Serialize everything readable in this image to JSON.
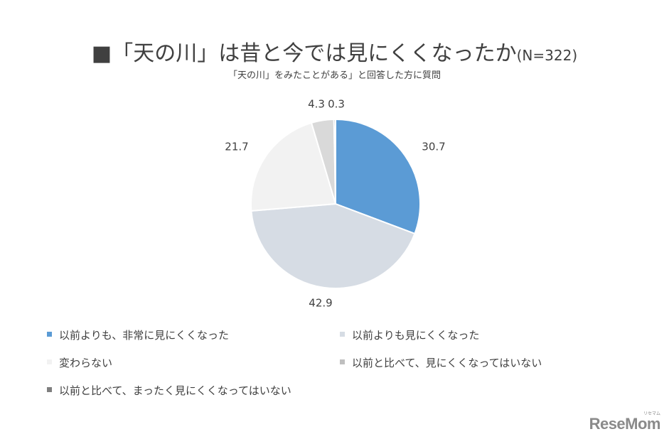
{
  "chart_data": {
    "type": "pie",
    "title": "■「天の川」は昔と今では見にくくなったか",
    "title_suffix": "(N=322)",
    "subtitle": "「天の川」をみたことがある」と回答した方に質問",
    "categories": [
      "以前よりも、非常に見にくくなった",
      "以前よりも見にくくなった",
      "変わらない",
      "以前と比べて、見にくくなってはいない",
      "以前と比べて、まったく見にくくなってはいない"
    ],
    "values": [
      30.7,
      42.9,
      21.7,
      4.3,
      0.3
    ],
    "value_labels": [
      "30.7",
      "42.9",
      "21.7",
      "4.3",
      "0.3"
    ],
    "colors": [
      "#5b9bd5",
      "#d6dce4",
      "#f2f2f2",
      "#d9d9d9",
      "#7f7f7f"
    ],
    "legend_colors": [
      "#5b9bd5",
      "#d6dce4",
      "#f2f2f2",
      "#bfbfbf",
      "#7f7f7f"
    ],
    "start": "12 o'clock",
    "direction": "clockwise",
    "legend_position": "bottom"
  },
  "watermark": {
    "text": "ReseMom",
    "sub": "リセマム"
  }
}
